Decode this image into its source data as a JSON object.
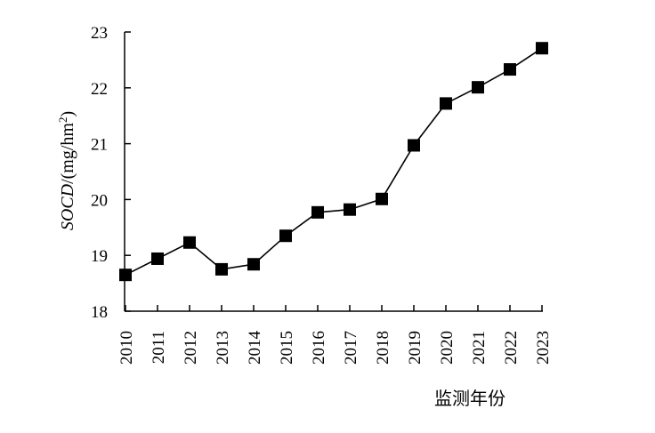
{
  "chart_data": {
    "type": "line",
    "title": "",
    "xlabel": "监测年份",
    "ylabel": {
      "italic": "SOCD",
      "rest": "/(mg/hm",
      "sup": "2",
      "close": ")"
    },
    "x": [
      "2010",
      "2011",
      "2012",
      "2013",
      "2014",
      "2015",
      "2016",
      "2017",
      "2018",
      "2019",
      "2020",
      "2021",
      "2022",
      "2023"
    ],
    "series": [
      {
        "values": [
          18.65,
          18.94,
          19.23,
          18.75,
          18.84,
          19.35,
          19.77,
          19.82,
          20.01,
          20.97,
          21.72,
          22.01,
          22.33,
          22.71
        ]
      }
    ],
    "ylim": [
      18,
      23
    ],
    "yticks": [
      "18",
      "19",
      "20",
      "21",
      "22",
      "23"
    ],
    "grid": false,
    "legend": "none",
    "marker": "square",
    "line_color": "#000000",
    "marker_color": "#000000"
  }
}
